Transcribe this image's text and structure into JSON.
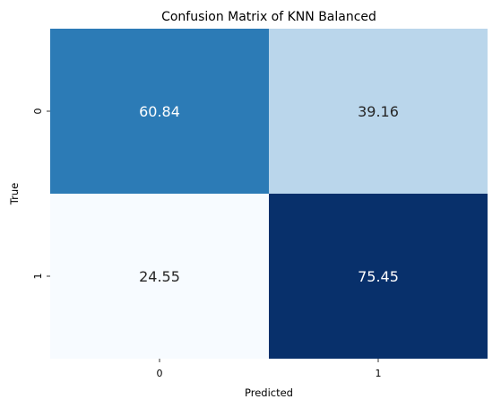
{
  "chart_data": {
    "type": "heatmap",
    "title": "Confusion Matrix of KNN Balanced",
    "xlabel": "Predicted",
    "ylabel": "True",
    "x_categories": [
      "0",
      "1"
    ],
    "y_categories": [
      "0",
      "1"
    ],
    "values": [
      [
        60.84,
        39.16
      ],
      [
        24.55,
        75.45
      ]
    ],
    "value_labels": [
      [
        "60.84",
        "39.16"
      ],
      [
        "24.55",
        "75.45"
      ]
    ],
    "colormap": "Blues",
    "colorbar": false,
    "cell_colors": [
      [
        "#2c7bb6",
        "#bad6eb"
      ],
      [
        "#f7fbff",
        "#08306b"
      ]
    ],
    "text_colors": [
      [
        "#ffffff",
        "#262626"
      ],
      [
        "#262626",
        "#ffffff"
      ]
    ]
  }
}
